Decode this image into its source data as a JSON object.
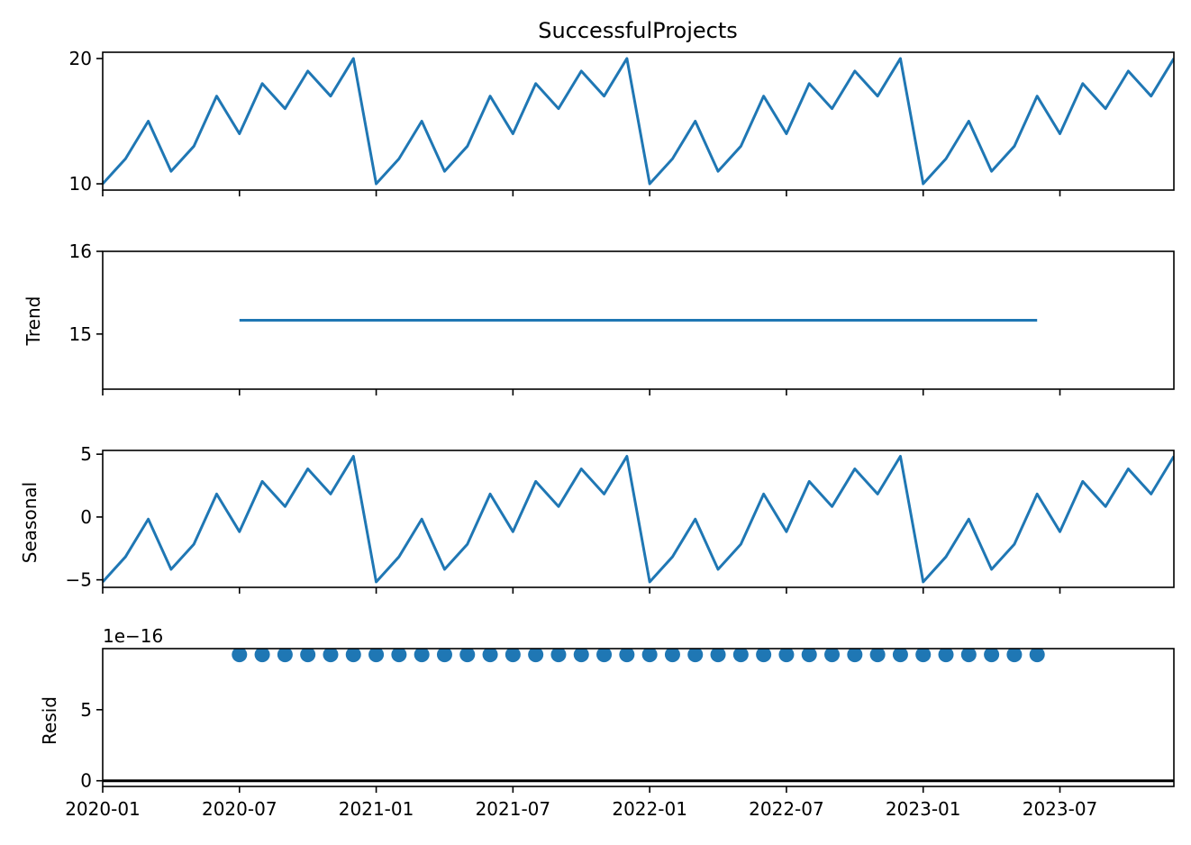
{
  "chart_data": [
    {
      "type": "line",
      "panel": "observed",
      "title": "SuccessfulProjects",
      "ylabel": "",
      "x": [
        "2020-01",
        "2020-02",
        "2020-03",
        "2020-04",
        "2020-05",
        "2020-06",
        "2020-07",
        "2020-08",
        "2020-09",
        "2020-10",
        "2020-11",
        "2020-12",
        "2021-01",
        "2021-02",
        "2021-03",
        "2021-04",
        "2021-05",
        "2021-06",
        "2021-07",
        "2021-08",
        "2021-09",
        "2021-10",
        "2021-11",
        "2021-12",
        "2022-01",
        "2022-02",
        "2022-03",
        "2022-04",
        "2022-05",
        "2022-06",
        "2022-07",
        "2022-08",
        "2022-09",
        "2022-10",
        "2022-11",
        "2022-12",
        "2023-01",
        "2023-02",
        "2023-03",
        "2023-04",
        "2023-05",
        "2023-06",
        "2023-07",
        "2023-08",
        "2023-09",
        "2023-10",
        "2023-11",
        "2023-12"
      ],
      "values": [
        10,
        12,
        15,
        11,
        13,
        17,
        14,
        18,
        16,
        19,
        17,
        20,
        10,
        12,
        15,
        11,
        13,
        17,
        14,
        18,
        16,
        19,
        17,
        20,
        10,
        12,
        15,
        11,
        13,
        17,
        14,
        18,
        16,
        19,
        17,
        20,
        10,
        12,
        15,
        11,
        13,
        17,
        14,
        18,
        16,
        19,
        17,
        20
      ],
      "ylim": [
        9.5,
        20.5
      ],
      "yticks": [
        {
          "value": 10,
          "label": "10"
        },
        {
          "value": 20,
          "label": "20"
        }
      ],
      "color": "#1f77b4"
    },
    {
      "type": "line",
      "panel": "trend",
      "title": "",
      "ylabel": "Trend",
      "x": [
        "2020-07",
        "2023-06"
      ],
      "values": [
        15.1667,
        15.1667
      ],
      "ylim": [
        14.333,
        16.0
      ],
      "yticks": [
        {
          "value": 15,
          "label": "15"
        },
        {
          "value": 16,
          "label": "16"
        }
      ],
      "color": "#1f77b4"
    },
    {
      "type": "line",
      "panel": "seasonal",
      "title": "",
      "ylabel": "Seasonal",
      "x": [
        "2020-01",
        "2020-02",
        "2020-03",
        "2020-04",
        "2020-05",
        "2020-06",
        "2020-07",
        "2020-08",
        "2020-09",
        "2020-10",
        "2020-11",
        "2020-12",
        "2021-01",
        "2021-02",
        "2021-03",
        "2021-04",
        "2021-05",
        "2021-06",
        "2021-07",
        "2021-08",
        "2021-09",
        "2021-10",
        "2021-11",
        "2021-12",
        "2022-01",
        "2022-02",
        "2022-03",
        "2022-04",
        "2022-05",
        "2022-06",
        "2022-07",
        "2022-08",
        "2022-09",
        "2022-10",
        "2022-11",
        "2022-12",
        "2023-01",
        "2023-02",
        "2023-03",
        "2023-04",
        "2023-05",
        "2023-06",
        "2023-07",
        "2023-08",
        "2023-09",
        "2023-10",
        "2023-11",
        "2023-12"
      ],
      "values": [
        -5.167,
        -3.167,
        -0.167,
        -4.167,
        -2.167,
        1.833,
        -1.167,
        2.833,
        0.833,
        3.833,
        1.833,
        4.833,
        -5.167,
        -3.167,
        -0.167,
        -4.167,
        -2.167,
        1.833,
        -1.167,
        2.833,
        0.833,
        3.833,
        1.833,
        4.833,
        -5.167,
        -3.167,
        -0.167,
        -4.167,
        -2.167,
        1.833,
        -1.167,
        2.833,
        0.833,
        3.833,
        1.833,
        4.833,
        -5.167,
        -3.167,
        -0.167,
        -4.167,
        -2.167,
        1.833,
        -1.167,
        2.833,
        0.833,
        3.833,
        1.833,
        4.833
      ],
      "ylim": [
        -5.6,
        5.3
      ],
      "yticks": [
        {
          "value": -5,
          "label": "−5"
        },
        {
          "value": 0,
          "label": "0"
        },
        {
          "value": 5,
          "label": "5"
        }
      ],
      "color": "#1f77b4"
    },
    {
      "type": "scatter",
      "panel": "resid",
      "title": "",
      "ylabel": "Resid",
      "offset_text": "1e−16",
      "x": [
        "2020-07",
        "2020-08",
        "2020-09",
        "2020-10",
        "2020-11",
        "2020-12",
        "2021-01",
        "2021-02",
        "2021-03",
        "2021-04",
        "2021-05",
        "2021-06",
        "2021-07",
        "2021-08",
        "2021-09",
        "2021-10",
        "2021-11",
        "2021-12",
        "2022-01",
        "2022-02",
        "2022-03",
        "2022-04",
        "2022-05",
        "2022-06",
        "2022-07",
        "2022-08",
        "2022-09",
        "2022-10",
        "2022-11",
        "2022-12",
        "2023-01",
        "2023-02",
        "2023-03",
        "2023-04",
        "2023-05",
        "2023-06"
      ],
      "values": [
        8.88,
        8.88,
        8.88,
        8.88,
        8.88,
        8.88,
        8.88,
        8.88,
        8.88,
        8.88,
        8.88,
        8.88,
        8.88,
        8.88,
        8.88,
        8.88,
        8.88,
        8.88,
        8.88,
        8.88,
        8.88,
        8.88,
        8.88,
        8.88,
        8.88,
        8.88,
        8.88,
        8.88,
        8.88,
        8.88,
        8.88,
        8.88,
        8.88,
        8.88,
        8.88,
        8.88
      ],
      "baseline": 0,
      "ylim": [
        -0.4,
        9.3
      ],
      "yticks": [
        {
          "value": 0,
          "label": "0"
        },
        {
          "value": 5,
          "label": "5"
        }
      ],
      "color": "#1f77b4"
    }
  ],
  "x_axis": {
    "range": [
      "2020-01",
      "2023-12"
    ],
    "ticks": [
      "2020-01",
      "2020-07",
      "2021-01",
      "2021-07",
      "2022-01",
      "2022-07",
      "2023-01",
      "2023-07"
    ]
  }
}
